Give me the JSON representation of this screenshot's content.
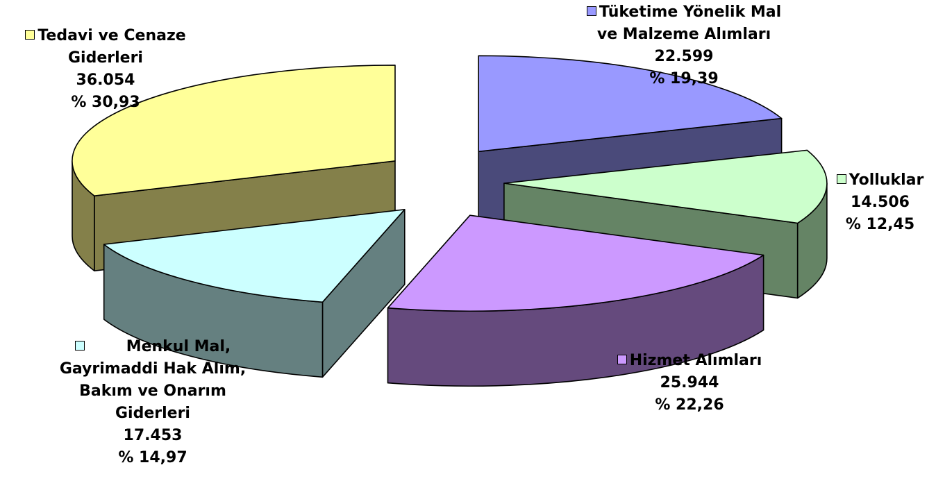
{
  "chart_data": {
    "type": "pie",
    "style": "3d-exploded",
    "slices": [
      {
        "name": "Tüketime Yönelik Mal ve Malzeme Alımları",
        "label_lines": [
          "Tüketime Yönelik Mal",
          "ve Malzeme Alımları"
        ],
        "value": 22599,
        "value_label": "22.599",
        "percent": 19.39,
        "percent_label": "% 19,39",
        "color": "#9999ff",
        "side_color": "#4a4a7a"
      },
      {
        "name": "Yolluklar",
        "label_lines": [
          "Yolluklar"
        ],
        "value": 14506,
        "value_label": "14.506",
        "percent": 12.45,
        "percent_label": "% 12,45",
        "color": "#ccffcc",
        "side_color": "#658465"
      },
      {
        "name": "Hizmet Alımları",
        "label_lines": [
          "Hizmet Alımları"
        ],
        "value": 25944,
        "value_label": "25.944",
        "percent": 22.26,
        "percent_label": "% 22,26",
        "color": "#cc99ff",
        "side_color": "#654a7d"
      },
      {
        "name": "Menkul Mal, Gayrimaddi Hak Alım, Bakım ve Onarım Giderleri",
        "label_lines": [
          "Menkul Mal,",
          "Gayrimaddi Hak Alım,",
          "Bakım ve Onarım",
          "Giderleri"
        ],
        "value": 17453,
        "value_label": "17.453",
        "percent": 14.97,
        "percent_label": "% 14,97",
        "color": "#ccffff",
        "side_color": "#658080"
      },
      {
        "name": "Tedavi ve Cenaze Giderleri",
        "label_lines": [
          "Tedavi ve Cenaze",
          "Giderleri"
        ],
        "value": 36054,
        "value_label": "36.054",
        "percent": 30.93,
        "percent_label": "% 30,93",
        "color": "#ffff99",
        "side_color": "#84804a"
      }
    ],
    "legend": "inline-labels"
  }
}
